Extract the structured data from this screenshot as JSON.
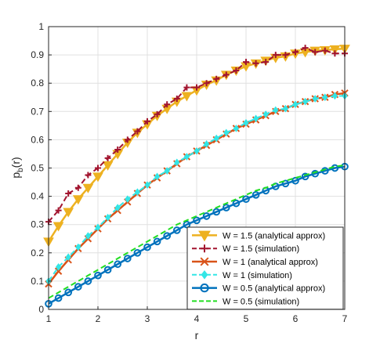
{
  "chart_data": {
    "type": "line",
    "title": "",
    "xlabel": "r",
    "ylabel": "p",
    "ylabel_sub": "b",
    "ylabel_suffix": "(r)",
    "xlim": [
      1,
      7
    ],
    "ylim": [
      0,
      1
    ],
    "x_ticks": [
      "1",
      "2",
      "3",
      "4",
      "5",
      "6",
      "7"
    ],
    "y_ticks": [
      "0",
      "0.1",
      "0.2",
      "0.3",
      "0.4",
      "0.5",
      "0.6",
      "0.7",
      "0.8",
      "0.9",
      "1"
    ],
    "grid": true,
    "legend_position": "bottom-right",
    "x": [
      1.0,
      1.2,
      1.4,
      1.6,
      1.8,
      2.0,
      2.2,
      2.4,
      2.6,
      2.8,
      3.0,
      3.2,
      3.4,
      3.6,
      3.8,
      4.0,
      4.2,
      4.4,
      4.6,
      4.8,
      5.0,
      5.2,
      5.4,
      5.6,
      5.8,
      6.0,
      6.2,
      6.4,
      6.6,
      6.8,
      7.0
    ],
    "series": [
      {
        "name": "W = 1.5 (analytical approx)",
        "color": "#EDB120",
        "style": "solid",
        "marker": "triangle-down",
        "values": [
          0.24,
          0.295,
          0.345,
          0.39,
          0.43,
          0.47,
          0.51,
          0.55,
          0.59,
          0.625,
          0.655,
          0.685,
          0.71,
          0.735,
          0.755,
          0.775,
          0.795,
          0.81,
          0.83,
          0.845,
          0.86,
          0.87,
          0.88,
          0.89,
          0.895,
          0.905,
          0.91,
          0.915,
          0.917,
          0.92,
          0.922
        ]
      },
      {
        "name": "W = 1.5 (simulation)",
        "color": "#A2142F",
        "style": "dashed",
        "marker": "plus",
        "values": [
          0.31,
          0.35,
          0.41,
          0.43,
          0.475,
          0.5,
          0.535,
          0.565,
          0.6,
          0.63,
          0.665,
          0.69,
          0.725,
          0.745,
          0.785,
          0.785,
          0.8,
          0.815,
          0.83,
          0.845,
          0.875,
          0.87,
          0.875,
          0.9,
          0.9,
          0.91,
          0.925,
          0.91,
          0.915,
          0.905,
          0.905
        ]
      },
      {
        "name": "W = 1 (analytical approx)",
        "color": "#D95319",
        "style": "solid",
        "marker": "x",
        "values": [
          0.09,
          0.135,
          0.175,
          0.215,
          0.25,
          0.285,
          0.32,
          0.35,
          0.38,
          0.41,
          0.44,
          0.465,
          0.49,
          0.515,
          0.54,
          0.56,
          0.58,
          0.6,
          0.62,
          0.64,
          0.655,
          0.67,
          0.685,
          0.7,
          0.71,
          0.725,
          0.735,
          0.745,
          0.75,
          0.76,
          0.765
        ]
      },
      {
        "name": "W = 1 (simulation)",
        "color": "#33E6E6",
        "style": "dashed",
        "marker": "diamond",
        "values": [
          0.1,
          0.15,
          0.185,
          0.22,
          0.26,
          0.29,
          0.325,
          0.36,
          0.39,
          0.415,
          0.44,
          0.47,
          0.49,
          0.52,
          0.54,
          0.56,
          0.585,
          0.605,
          0.625,
          0.64,
          0.66,
          0.675,
          0.69,
          0.705,
          0.71,
          0.725,
          0.735,
          0.745,
          0.75,
          0.755,
          0.755
        ]
      },
      {
        "name": "W = 0.5 (analytical approx)",
        "color": "#0072BD",
        "style": "solid",
        "marker": "circle",
        "values": [
          0.02,
          0.04,
          0.06,
          0.08,
          0.1,
          0.12,
          0.14,
          0.16,
          0.18,
          0.2,
          0.22,
          0.24,
          0.26,
          0.28,
          0.3,
          0.315,
          0.33,
          0.345,
          0.36,
          0.375,
          0.39,
          0.405,
          0.42,
          0.435,
          0.445,
          0.455,
          0.47,
          0.48,
          0.49,
          0.5,
          0.505
        ]
      },
      {
        "name": "W = 0.5 (simulation)",
        "color": "#22DD22",
        "style": "dashed",
        "marker": "none",
        "values": [
          0.04,
          0.06,
          0.08,
          0.1,
          0.12,
          0.14,
          0.16,
          0.18,
          0.2,
          0.22,
          0.24,
          0.26,
          0.28,
          0.3,
          0.315,
          0.33,
          0.345,
          0.36,
          0.375,
          0.39,
          0.405,
          0.42,
          0.43,
          0.445,
          0.455,
          0.465,
          0.475,
          0.485,
          0.495,
          0.505,
          0.51
        ]
      }
    ]
  }
}
